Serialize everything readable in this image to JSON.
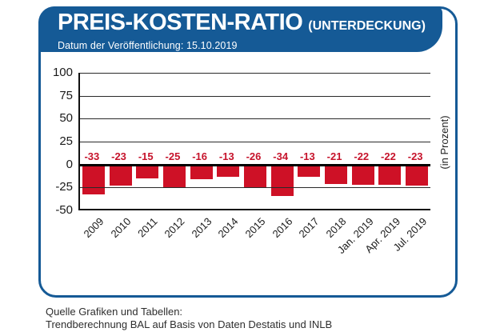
{
  "header": {
    "title": "PREIS-KOSTEN-RATIO",
    "title_suffix": "(UNTERDECKUNG)",
    "subtitle": "Datum der Veröffentlichung: 15.10.2019"
  },
  "footer": {
    "line1": "Quelle Grafiken und Tabellen:",
    "line2": "Trendberechnung BAL auf Basis von Daten Destatis und INLB"
  },
  "colors": {
    "banner_blue": "#155a96",
    "banner_shadow": "#0c3a63",
    "frame_border": "#155a96",
    "bar_red": "#ce1126",
    "value_label_red": "#c6132b",
    "axis_text": "#1a1a1a"
  },
  "chart_data": {
    "type": "bar",
    "title": "PREIS-KOSTEN-RATIO (UNTERDECKUNG)",
    "categories": [
      "2009",
      "2010",
      "2011",
      "2012",
      "2013",
      "2014",
      "2015",
      "2016",
      "2017",
      "2018",
      "Jan. 2019",
      "Apr. 2019",
      "Jul. 2019"
    ],
    "values": [
      -33,
      -23,
      -15,
      -25,
      -16,
      -13,
      -26,
      -34,
      -13,
      -21,
      -22,
      -22,
      -23
    ],
    "xlabel": "",
    "ylabel": "(in Prozent)",
    "ylim": [
      -50,
      100
    ],
    "yticks": [
      100,
      75,
      50,
      25,
      0,
      -25,
      -50
    ],
    "grid": true,
    "legend": false,
    "bar_color": "#ce1126"
  }
}
